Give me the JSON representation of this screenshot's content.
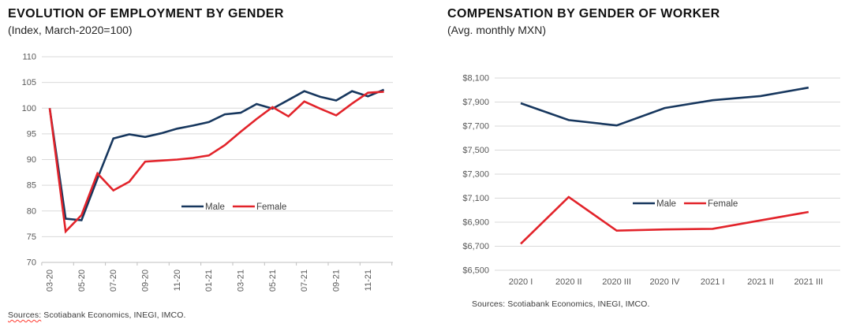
{
  "theme": {
    "male_color": "#17375E",
    "female_color": "#E2232A",
    "grid_color": "#D9D9D9",
    "axis_color": "#BFBFBF",
    "tick_text_color": "#595959",
    "legend_text_color": "#404040",
    "title_color": "#111111"
  },
  "chart_data": [
    {
      "type": "line",
      "title": "EVOLUTION OF EMPLOYMENT BY GENDER",
      "subtitle": "(Index, March-2020=100)",
      "sources_label": "Sources:",
      "sources_rest": " Scotiabank Economics, INEGI, IMCO.",
      "x": [
        "03-20",
        "04-20",
        "05-20",
        "06-20",
        "07-20",
        "08-20",
        "09-20",
        "10-20",
        "11-20",
        "12-20",
        "01-21",
        "02-21",
        "03-21",
        "04-21",
        "05-21",
        "06-21",
        "07-21",
        "08-21",
        "09-21",
        "10-21",
        "11-21",
        "12-21"
      ],
      "x_tick_labels": [
        "03-20",
        "05-20",
        "07-20",
        "09-20",
        "11-20",
        "01-21",
        "03-21",
        "05-21",
        "07-21",
        "09-21",
        "11-21"
      ],
      "ylim": [
        70,
        110
      ],
      "yticks": [
        {
          "value": 70,
          "label": "70"
        },
        {
          "value": 75,
          "label": "75"
        },
        {
          "value": 80,
          "label": "80"
        },
        {
          "value": 85,
          "label": "85"
        },
        {
          "value": 90,
          "label": "90"
        },
        {
          "value": 95,
          "label": "95"
        },
        {
          "value": 100,
          "label": "100"
        },
        {
          "value": 105,
          "label": "105"
        },
        {
          "value": 110,
          "label": "110"
        }
      ],
      "grid": true,
      "legend_position": "inside-center",
      "series": [
        {
          "name": "Male",
          "color": "#17375E",
          "values": [
            100,
            78.5,
            78.2,
            86.3,
            94.1,
            94.9,
            94.4,
            95.1,
            96.0,
            96.6,
            97.3,
            98.8,
            99.1,
            100.8,
            99.9,
            101.6,
            103.3,
            102.2,
            101.5,
            103.3,
            102.3,
            103.6
          ]
        },
        {
          "name": "Female",
          "color": "#E2232A",
          "values": [
            100,
            76.0,
            79.2,
            87.3,
            84.0,
            85.7,
            89.6,
            89.8,
            90.0,
            90.3,
            90.8,
            92.8,
            95.4,
            97.9,
            100.2,
            98.4,
            101.3,
            99.9,
            98.6,
            100.9,
            103.0,
            103.2
          ]
        }
      ]
    },
    {
      "type": "line",
      "title": "COMPENSATION BY GENDER OF WORKER",
      "subtitle": "(Avg. monthly MXN)",
      "sources": "Sources: Scotiabank Economics, INEGI, IMCO.",
      "x": [
        "2020 I",
        "2020 II",
        "2020 III",
        "2020 IV",
        "2021 I",
        "2021 II",
        "2021 III"
      ],
      "x_tick_labels": [
        "2020 I",
        "2020 II",
        "2020 III",
        "2020 IV",
        "2021 I",
        "2021 II",
        "2021 III"
      ],
      "ylim": [
        6500,
        8100
      ],
      "yticks": [
        {
          "value": 6500,
          "label": "$6,500"
        },
        {
          "value": 6700,
          "label": "$6,700"
        },
        {
          "value": 6900,
          "label": "$6,900"
        },
        {
          "value": 7100,
          "label": "$7,100"
        },
        {
          "value": 7300,
          "label": "$7,300"
        },
        {
          "value": 7500,
          "label": "$7,500"
        },
        {
          "value": 7700,
          "label": "$7,700"
        },
        {
          "value": 7900,
          "label": "$7,900"
        },
        {
          "value": 8100,
          "label": "$8,100"
        }
      ],
      "grid": true,
      "legend_position": "inside-center",
      "series": [
        {
          "name": "Male",
          "color": "#17375E",
          "values": [
            7890,
            7750,
            7705,
            7850,
            7915,
            7950,
            8020
          ]
        },
        {
          "name": "Female",
          "color": "#E2232A",
          "values": [
            6720,
            7110,
            6830,
            6840,
            6845,
            6915,
            6985
          ]
        }
      ]
    }
  ]
}
